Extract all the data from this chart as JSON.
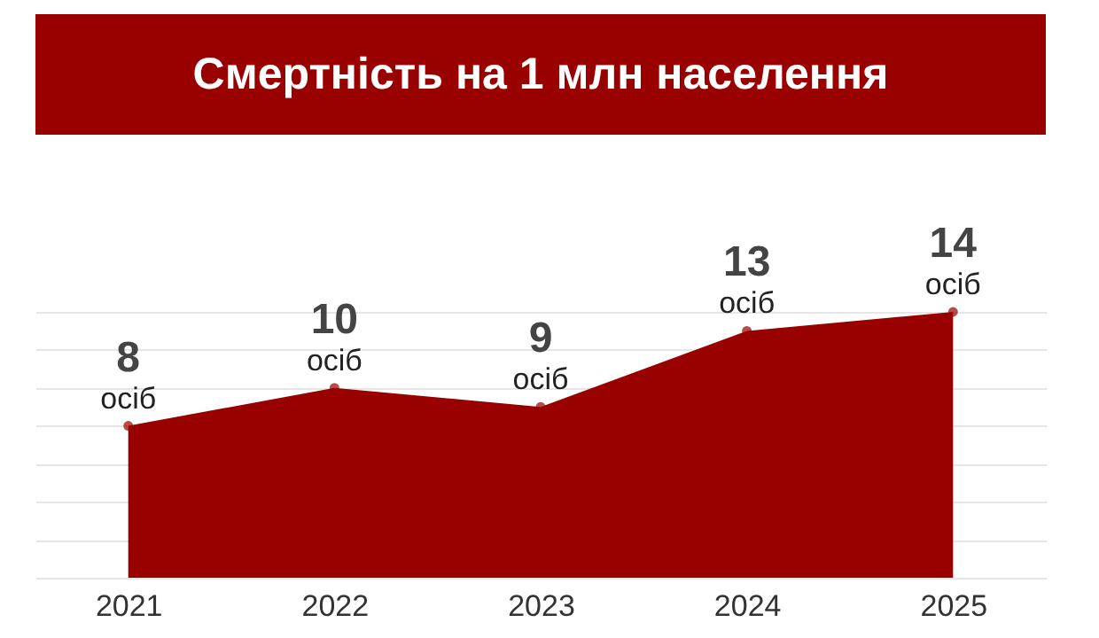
{
  "chart_data": {
    "type": "area",
    "title": "Смертність на 1 млн населення",
    "categories": [
      "2021",
      "2022",
      "2023",
      "2024",
      "2025"
    ],
    "series": [
      {
        "color": "#990000",
        "values": [
          8,
          10,
          9,
          13,
          14
        ]
      }
    ],
    "data_labels": true,
    "annotations": [
      {
        "text": "осіб",
        "x": "2021",
        "y": 8
      },
      {
        "text": "осіб",
        "x": "2022",
        "y": 10
      },
      {
        "text": "осіб",
        "x": "2023",
        "y": 9
      },
      {
        "text": "осіб",
        "x": "2024",
        "y": 13
      },
      {
        "text": "осіб",
        "x": "2025",
        "y": 14
      }
    ],
    "marker": "circle",
    "grid": "y",
    "tick_labels": "x"
  }
}
